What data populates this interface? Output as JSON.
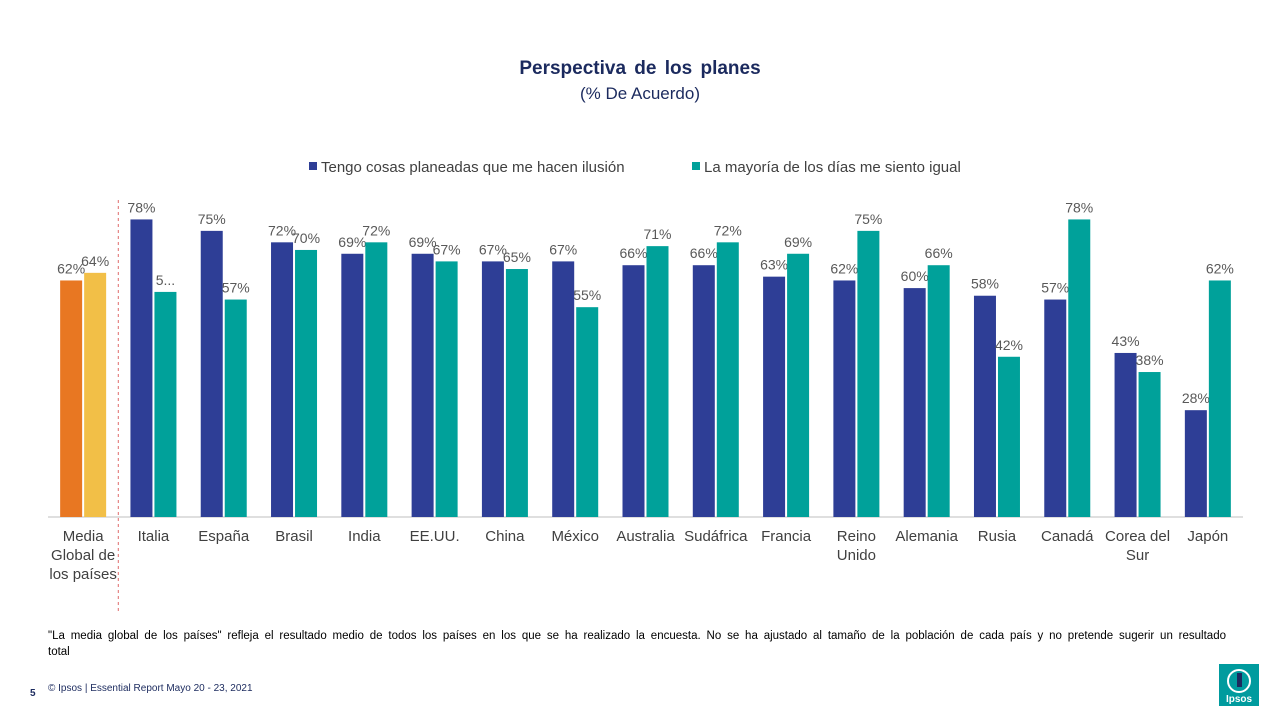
{
  "chart_data": {
    "type": "bar",
    "title": "Perspectiva de los planes",
    "subtitle": "(% De Acuerdo)",
    "ylim": [
      0,
      90
    ],
    "grid": false,
    "legend_position": "top",
    "categories": [
      "Media Global de los países",
      "Italia",
      "España",
      "Brasil",
      "India",
      "EE.UU.",
      "China",
      "México",
      "Australia",
      "Sudáfrica",
      "Francia",
      "Reino Unido",
      "Alemania",
      "Rusia",
      "Canadá",
      "Corea del Sur",
      "Japón"
    ],
    "series": [
      {
        "name": "Tengo cosas planeadas que me hacen ilusión",
        "color": "#2e3e96",
        "highlight_color": "#e87722",
        "values": [
          62,
          78,
          75,
          72,
          69,
          69,
          67,
          67,
          66,
          66,
          63,
          62,
          60,
          58,
          57,
          43,
          28
        ],
        "labels": [
          "62%",
          "78%",
          "75%",
          "72%",
          "69%",
          "69%",
          "67%",
          "67%",
          "66%",
          "66%",
          "63%",
          "62%",
          "60%",
          "58%",
          "57%",
          "43%",
          "28%"
        ]
      },
      {
        "name": "La mayoría de los días me siento igual",
        "color": "#00a19a",
        "highlight_color": "#f2bf47",
        "values": [
          64,
          59,
          57,
          70,
          72,
          67,
          65,
          55,
          71,
          72,
          69,
          75,
          66,
          42,
          78,
          38,
          62
        ],
        "labels": [
          "64%",
          "5...",
          "57%",
          "70%",
          "72%",
          "67%",
          "65%",
          "55%",
          "71%",
          "72%",
          "69%",
          "75%",
          "66%",
          "42%",
          "78%",
          "38%",
          "62%"
        ]
      }
    ]
  },
  "note": "\"La media global de los países\" refleja el resultado medio de todos los países en los que se ha realizado la encuesta. No se ha ajustado al tamaño de la población de cada país y no pretende sugerir un resultado total",
  "footer": "© Ipsos | Essential Report Mayo 20 - 23, 2021",
  "page_number": "5",
  "logo_text": "Ipsos",
  "colors": {
    "title": "#1b2a5e",
    "axis": "#bfbfbf",
    "label": "#595959",
    "divider": "#e06c6c"
  }
}
